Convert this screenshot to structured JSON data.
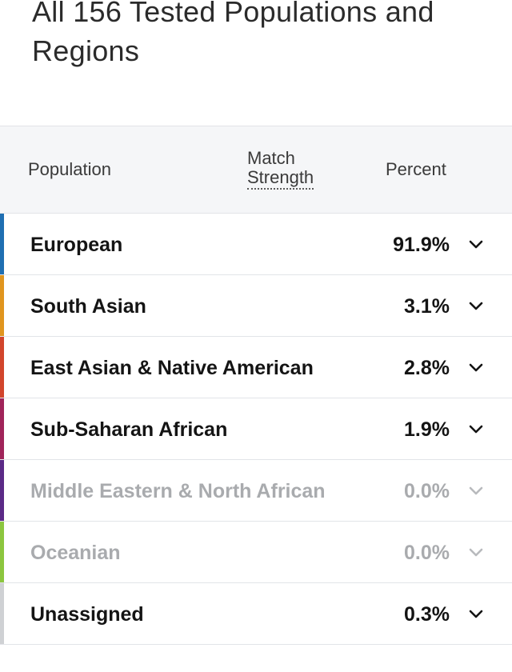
{
  "page_title": "All 156 Tested Populations and Regions",
  "table": {
    "headers": {
      "population": "Population",
      "match_line1": "Match",
      "match_line2": "Strength",
      "percent": "Percent"
    },
    "rows": [
      {
        "name": "European",
        "percent": "91.9%",
        "color": "#1f6fb2",
        "muted": false
      },
      {
        "name": "South Asian",
        "percent": "3.1%",
        "color": "#e0951e",
        "muted": false
      },
      {
        "name": "East Asian & Native American",
        "percent": "2.8%",
        "color": "#d2452c",
        "muted": false
      },
      {
        "name": "Sub-Saharan African",
        "percent": "1.9%",
        "color": "#a0245a",
        "muted": false
      },
      {
        "name": "Middle Eastern & North African",
        "percent": "0.0%",
        "color": "#5b2a86",
        "muted": true
      },
      {
        "name": "Oceanian",
        "percent": "0.0%",
        "color": "#8cc63f",
        "muted": true
      },
      {
        "name": "Unassigned",
        "percent": "0.3%",
        "color": "#cfd1d4",
        "muted": false
      }
    ]
  },
  "icons": {
    "expand": "chevron-down-icon"
  }
}
